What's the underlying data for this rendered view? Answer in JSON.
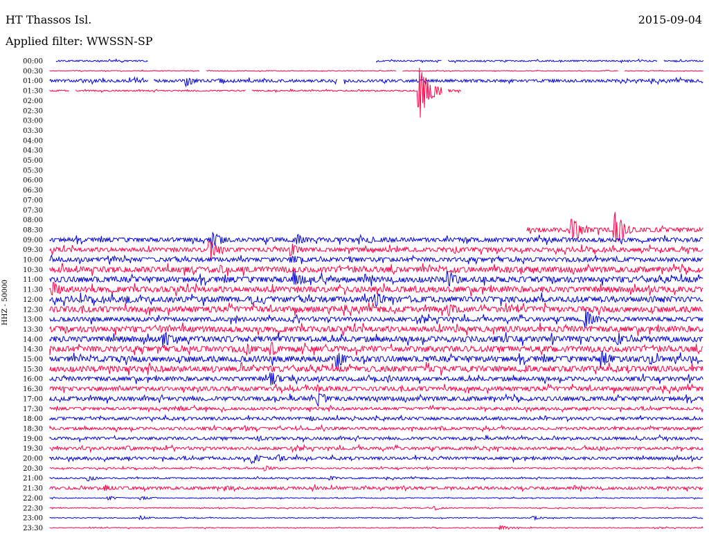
{
  "header": {
    "station": "HT Thassos Isl.",
    "date": "2015-09-04",
    "filter": "Applied filter: WWSSN-SP",
    "channel": "HHZ - 50000"
  },
  "colors": {
    "even": "#0000dd",
    "odd": "#ff0044"
  },
  "chart_data": {
    "type": "line",
    "title": "HT Thassos Isl.",
    "ylabel": "HHZ - 50000",
    "tick_labels": [
      "00:00",
      "00:30",
      "01:00",
      "01:30",
      "02:00",
      "02:30",
      "03:00",
      "03:30",
      "04:00",
      "04:30",
      "05:00",
      "05:30",
      "06:00",
      "06:30",
      "07:00",
      "07:30",
      "08:00",
      "08:30",
      "09:00",
      "09:30",
      "10:00",
      "10:30",
      "11:00",
      "11:30",
      "12:00",
      "12:30",
      "13:00",
      "13:30",
      "14:00",
      "14:30",
      "15:00",
      "15:30",
      "16:00",
      "16:30",
      "17:00",
      "17:30",
      "18:00",
      "18:30",
      "19:00",
      "19:30",
      "20:00",
      "20:30",
      "21:00",
      "21:30",
      "22:00",
      "22:30",
      "23:00",
      "23:30"
    ],
    "traces": [
      {
        "label": "00:00",
        "segments": [
          [
            0.01,
            0.15
          ],
          [
            0.5,
            0.6
          ],
          [
            0.61,
            0.93
          ],
          [
            0.94,
            1.0
          ]
        ],
        "noise": 1,
        "events": []
      },
      {
        "label": "00:30",
        "segments": [
          [
            0.0,
            0.23
          ],
          [
            0.24,
            0.53
          ],
          [
            0.54,
            0.87
          ],
          [
            0.88,
            1.0
          ]
        ],
        "noise": 0.5,
        "events": []
      },
      {
        "label": "01:00",
        "segments": [
          [
            0.0,
            0.15
          ],
          [
            0.16,
            0.44
          ],
          [
            0.45,
            1.0
          ]
        ],
        "noise": 2,
        "events": [
          [
            0.21,
            8
          ],
          [
            0.26,
            4
          ]
        ]
      },
      {
        "label": "01:30",
        "segments": [
          [
            0.0,
            0.03
          ],
          [
            0.04,
            0.3
          ],
          [
            0.31,
            0.6
          ],
          [
            0.61,
            0.63
          ]
        ],
        "noise": 1,
        "events": [
          [
            0.565,
            48
          ]
        ]
      },
      {
        "label": "02:00",
        "segments": [],
        "noise": 0,
        "events": []
      },
      {
        "label": "02:30",
        "segments": [],
        "noise": 0,
        "events": []
      },
      {
        "label": "03:00",
        "segments": [],
        "noise": 0,
        "events": []
      },
      {
        "label": "03:30",
        "segments": [],
        "noise": 0,
        "events": []
      },
      {
        "label": "04:00",
        "segments": [],
        "noise": 0,
        "events": []
      },
      {
        "label": "04:30",
        "segments": [],
        "noise": 0,
        "events": []
      },
      {
        "label": "05:00",
        "segments": [],
        "noise": 0,
        "events": []
      },
      {
        "label": "05:30",
        "segments": [],
        "noise": 0,
        "events": []
      },
      {
        "label": "06:00",
        "segments": [],
        "noise": 0,
        "events": []
      },
      {
        "label": "06:30",
        "segments": [],
        "noise": 0,
        "events": []
      },
      {
        "label": "07:00",
        "segments": [],
        "noise": 0,
        "events": []
      },
      {
        "label": "07:30",
        "segments": [],
        "noise": 0,
        "events": []
      },
      {
        "label": "08:00",
        "segments": [],
        "noise": 0,
        "events": []
      },
      {
        "label": "08:30",
        "segments": [
          [
            0.73,
            1.0
          ]
        ],
        "noise": 3,
        "events": [
          [
            0.8,
            22
          ],
          [
            0.865,
            26
          ]
        ]
      },
      {
        "label": "09:00",
        "segments": [
          [
            0.0,
            1.0
          ]
        ],
        "noise": 3,
        "events": [
          [
            0.25,
            14
          ],
          [
            0.38,
            8
          ],
          [
            0.49,
            6
          ]
        ]
      },
      {
        "label": "09:30",
        "segments": [
          [
            0.0,
            1.0
          ]
        ],
        "noise": 3,
        "events": [
          [
            0.245,
            16
          ],
          [
            0.37,
            10
          ],
          [
            0.62,
            6
          ]
        ]
      },
      {
        "label": "10:00",
        "segments": [
          [
            0.0,
            1.0
          ]
        ],
        "noise": 3,
        "events": [
          [
            0.37,
            8
          ],
          [
            0.46,
            5
          ]
        ]
      },
      {
        "label": "10:30",
        "segments": [
          [
            0.0,
            1.0
          ]
        ],
        "noise": 4,
        "events": [
          [
            0.26,
            8
          ],
          [
            0.62,
            5
          ],
          [
            0.7,
            6
          ]
        ]
      },
      {
        "label": "11:00",
        "segments": [
          [
            0.0,
            1.0
          ]
        ],
        "noise": 4,
        "events": [
          [
            0.375,
            14
          ],
          [
            0.61,
            16
          ]
        ]
      },
      {
        "label": "11:30",
        "segments": [
          [
            0.0,
            1.0
          ]
        ],
        "noise": 4,
        "events": [
          [
            0.005,
            12
          ],
          [
            0.56,
            6
          ]
        ]
      },
      {
        "label": "12:00",
        "segments": [
          [
            0.0,
            1.0
          ]
        ],
        "noise": 4,
        "events": [
          [
            0.12,
            8
          ],
          [
            0.31,
            8
          ],
          [
            0.5,
            12
          ]
        ]
      },
      {
        "label": "12:30",
        "segments": [
          [
            0.0,
            1.0
          ]
        ],
        "noise": 4,
        "events": [
          [
            0.61,
            12
          ],
          [
            0.76,
            5
          ]
        ]
      },
      {
        "label": "13:00",
        "segments": [
          [
            0.0,
            1.0
          ]
        ],
        "noise": 3,
        "events": [
          [
            0.82,
            14
          ]
        ]
      },
      {
        "label": "13:30",
        "segments": [
          [
            0.0,
            1.0
          ]
        ],
        "noise": 4,
        "events": [
          [
            0.17,
            6
          ],
          [
            0.62,
            5
          ]
        ]
      },
      {
        "label": "14:00",
        "segments": [
          [
            0.0,
            1.0
          ]
        ],
        "noise": 4,
        "events": [
          [
            0.175,
            12
          ],
          [
            0.87,
            10
          ]
        ]
      },
      {
        "label": "14:30",
        "segments": [
          [
            0.0,
            1.0
          ]
        ],
        "noise": 4,
        "events": [
          [
            0.3,
            10
          ],
          [
            0.34,
            10
          ]
        ]
      },
      {
        "label": "15:00",
        "segments": [
          [
            0.0,
            1.0
          ]
        ],
        "noise": 4,
        "events": [
          [
            0.44,
            14
          ],
          [
            0.845,
            14
          ],
          [
            0.92,
            8
          ]
        ]
      },
      {
        "label": "15:30",
        "segments": [
          [
            0.0,
            1.0
          ]
        ],
        "noise": 4,
        "events": [
          [
            0.25,
            5
          ],
          [
            0.73,
            6
          ]
        ]
      },
      {
        "label": "16:00",
        "segments": [
          [
            0.0,
            1.0
          ]
        ],
        "noise": 3,
        "events": [
          [
            0.34,
            10
          ],
          [
            0.52,
            5
          ]
        ]
      },
      {
        "label": "16:30",
        "segments": [
          [
            0.0,
            1.0
          ]
        ],
        "noise": 3,
        "events": [
          [
            0.41,
            6
          ]
        ]
      },
      {
        "label": "17:00",
        "segments": [
          [
            0.0,
            1.0
          ]
        ],
        "noise": 3,
        "events": [
          [
            0.41,
            12
          ]
        ]
      },
      {
        "label": "17:30",
        "segments": [
          [
            0.0,
            1.0
          ]
        ],
        "noise": 2,
        "events": [
          [
            0.2,
            4
          ]
        ]
      },
      {
        "label": "18:00",
        "segments": [
          [
            0.0,
            1.0
          ]
        ],
        "noise": 2,
        "events": [
          [
            0.4,
            4
          ]
        ]
      },
      {
        "label": "18:30",
        "segments": [
          [
            0.0,
            1.0
          ]
        ],
        "noise": 2,
        "events": [
          [
            0.3,
            5
          ],
          [
            0.6,
            4
          ]
        ]
      },
      {
        "label": "19:00",
        "segments": [
          [
            0.0,
            1.0
          ]
        ],
        "noise": 2,
        "events": [
          [
            0.32,
            4
          ]
        ]
      },
      {
        "label": "19:30",
        "segments": [
          [
            0.0,
            1.0
          ]
        ],
        "noise": 2,
        "events": [
          [
            0.12,
            4
          ],
          [
            0.84,
            4
          ]
        ]
      },
      {
        "label": "20:00",
        "segments": [
          [
            0.0,
            1.0
          ]
        ],
        "noise": 2,
        "events": [
          [
            0.31,
            8
          ],
          [
            0.35,
            6
          ]
        ]
      },
      {
        "label": "20:30",
        "segments": [
          [
            0.0,
            1.0
          ]
        ],
        "noise": 1,
        "events": [
          [
            0.33,
            4
          ]
        ]
      },
      {
        "label": "21:00",
        "segments": [
          [
            0.0,
            1.0
          ]
        ],
        "noise": 1,
        "events": [
          [
            0.06,
            4
          ],
          [
            0.43,
            3
          ]
        ]
      },
      {
        "label": "21:30",
        "segments": [
          [
            0.0,
            1.0
          ]
        ],
        "noise": 2,
        "events": [
          [
            0.085,
            5
          ],
          [
            0.27,
            4
          ]
        ]
      },
      {
        "label": "22:00",
        "segments": [
          [
            0.0,
            1.0
          ]
        ],
        "noise": 0.6,
        "events": [
          [
            0.09,
            3
          ],
          [
            0.14,
            3
          ]
        ]
      },
      {
        "label": "22:30",
        "segments": [
          [
            0.0,
            1.0
          ]
        ],
        "noise": 0.6,
        "events": [
          [
            0.59,
            3
          ]
        ]
      },
      {
        "label": "23:00",
        "segments": [
          [
            0.0,
            1.0
          ]
        ],
        "noise": 0.6,
        "events": [
          [
            0.14,
            3
          ],
          [
            0.74,
            3
          ]
        ]
      },
      {
        "label": "23:30",
        "segments": [
          [
            0.0,
            1.0
          ]
        ],
        "noise": 0.6,
        "events": [
          [
            0.69,
            4
          ]
        ]
      }
    ]
  }
}
